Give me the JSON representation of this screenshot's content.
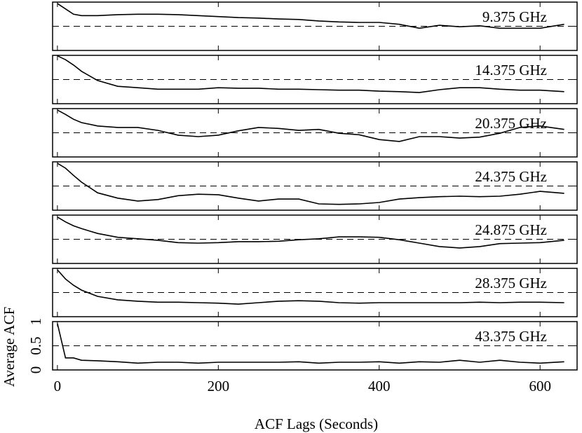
{
  "chart_data": {
    "type": "line",
    "x_label": "ACF Lags (Seconds)",
    "y_label": "Average ACF",
    "x": [
      0,
      10,
      20,
      30,
      50,
      75,
      100,
      125,
      150,
      175,
      200,
      225,
      250,
      275,
      300,
      325,
      350,
      375,
      400,
      425,
      450,
      475,
      500,
      525,
      550,
      575,
      600,
      630
    ],
    "xlim": [
      -6,
      646
    ],
    "xticks": [
      0,
      200,
      400,
      600
    ],
    "ylim": [
      0,
      1
    ],
    "yticks": [
      0,
      0.5,
      1
    ],
    "reference_line": 0.5,
    "series": [
      {
        "name": "9.375 GHz",
        "color": "#000000",
        "values": [
          0.97,
          0.86,
          0.75,
          0.72,
          0.72,
          0.74,
          0.75,
          0.75,
          0.74,
          0.72,
          0.7,
          0.68,
          0.67,
          0.65,
          0.64,
          0.61,
          0.59,
          0.58,
          0.58,
          0.54,
          0.46,
          0.52,
          0.49,
          0.51,
          0.46,
          0.46,
          0.46,
          0.54
        ]
      },
      {
        "name": "14.375 GHz",
        "color": "#000000",
        "values": [
          0.99,
          0.91,
          0.8,
          0.67,
          0.48,
          0.36,
          0.33,
          0.3,
          0.3,
          0.3,
          0.33,
          0.32,
          0.32,
          0.3,
          0.3,
          0.29,
          0.28,
          0.28,
          0.26,
          0.25,
          0.23,
          0.29,
          0.33,
          0.33,
          0.3,
          0.28,
          0.28,
          0.25
        ]
      },
      {
        "name": "20.375 GHz",
        "color": "#000000",
        "values": [
          0.97,
          0.88,
          0.78,
          0.71,
          0.64,
          0.61,
          0.61,
          0.55,
          0.45,
          0.42,
          0.45,
          0.54,
          0.61,
          0.59,
          0.55,
          0.57,
          0.49,
          0.46,
          0.36,
          0.32,
          0.42,
          0.42,
          0.39,
          0.41,
          0.49,
          0.61,
          0.64,
          0.57
        ]
      },
      {
        "name": "24.375 GHz",
        "color": "#000000",
        "values": [
          0.97,
          0.87,
          0.72,
          0.58,
          0.36,
          0.25,
          0.19,
          0.22,
          0.3,
          0.33,
          0.32,
          0.25,
          0.19,
          0.23,
          0.23,
          0.13,
          0.12,
          0.13,
          0.16,
          0.23,
          0.26,
          0.28,
          0.29,
          0.28,
          0.29,
          0.33,
          0.39,
          0.35
        ]
      },
      {
        "name": "24.875 GHz",
        "color": "#000000",
        "values": [
          0.96,
          0.86,
          0.78,
          0.72,
          0.62,
          0.54,
          0.51,
          0.48,
          0.43,
          0.42,
          0.43,
          0.45,
          0.45,
          0.46,
          0.49,
          0.51,
          0.55,
          0.55,
          0.54,
          0.49,
          0.42,
          0.35,
          0.32,
          0.35,
          0.41,
          0.42,
          0.43,
          0.48
        ]
      },
      {
        "name": "28.375 GHz",
        "color": "#000000",
        "values": [
          0.97,
          0.78,
          0.65,
          0.55,
          0.42,
          0.35,
          0.32,
          0.3,
          0.3,
          0.29,
          0.28,
          0.26,
          0.29,
          0.32,
          0.33,
          0.32,
          0.29,
          0.28,
          0.29,
          0.29,
          0.29,
          0.29,
          0.29,
          0.3,
          0.29,
          0.3,
          0.3,
          0.29
        ]
      },
      {
        "name": "43.375 GHz",
        "color": "#000000",
        "values": [
          0.96,
          0.25,
          0.25,
          0.2,
          0.19,
          0.17,
          0.14,
          0.16,
          0.16,
          0.14,
          0.16,
          0.16,
          0.16,
          0.16,
          0.17,
          0.14,
          0.16,
          0.16,
          0.17,
          0.14,
          0.17,
          0.16,
          0.2,
          0.16,
          0.2,
          0.16,
          0.14,
          0.17
        ]
      }
    ]
  }
}
